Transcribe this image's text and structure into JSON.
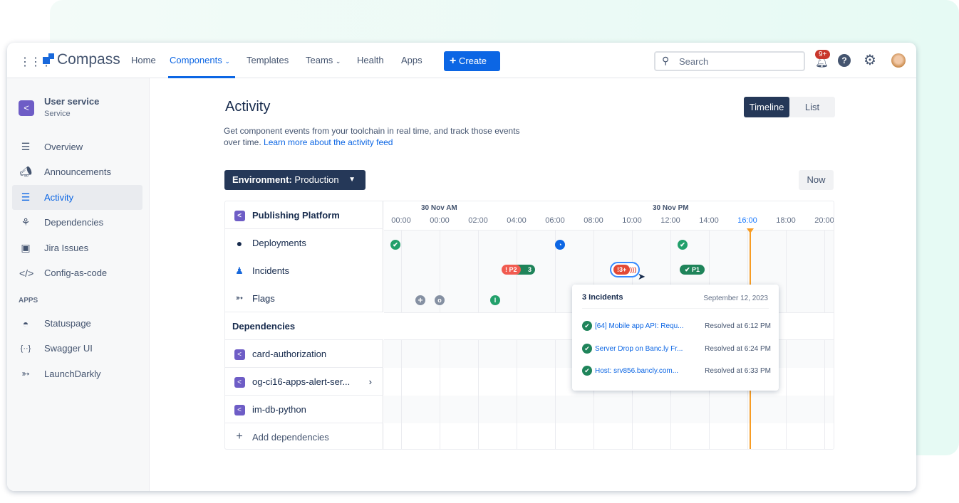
{
  "nav": {
    "brand": "Compass",
    "items": [
      {
        "label": "Home"
      },
      {
        "label": "Components",
        "active": true
      },
      {
        "label": "Templates"
      },
      {
        "label": "Teams"
      },
      {
        "label": "Health"
      },
      {
        "label": "Apps"
      }
    ],
    "create_label": "Create",
    "search_placeholder": "Search",
    "notification_badge": "9+"
  },
  "sidebar": {
    "component_name": "User service",
    "component_type": "Service",
    "items": [
      {
        "label": "Overview",
        "icon": "lines-icon"
      },
      {
        "label": "Announcements",
        "icon": "megaphone-icon"
      },
      {
        "label": "Activity",
        "icon": "activity-icon",
        "active": true
      },
      {
        "label": "Dependencies",
        "icon": "dependencies-icon"
      },
      {
        "label": "Jira Issues",
        "icon": "jira-icon"
      },
      {
        "label": "Config-as-code",
        "icon": "code-icon"
      }
    ],
    "apps_heading": "APPS",
    "apps": [
      {
        "label": "Statuspage"
      },
      {
        "label": "Swagger UI"
      },
      {
        "label": "LaunchDarkly"
      }
    ]
  },
  "main": {
    "title": "Activity",
    "description": "Get component events from your toolchain in real time, and track those events over time.",
    "learn_more": "Learn more about the activity feed",
    "view_toggle": [
      "Timeline",
      "List"
    ],
    "active_view": "Timeline",
    "environment_label": "Environment:",
    "environment_value": "Production",
    "now_label": "Now"
  },
  "timeline": {
    "component": "Publishing Platform",
    "rows": [
      "Deployments",
      "Incidents",
      "Flags"
    ],
    "dependencies_heading": "Dependencies",
    "dependencies": [
      "card-authorization",
      "og-ci16-apps-alert-ser...",
      "im-db-python"
    ],
    "add_dependencies": "Add dependencies",
    "date_am": "30 Nov AM",
    "date_pm": "30 Nov PM",
    "ticks": [
      "00:00",
      "00:00",
      "02:00",
      "04:00",
      "06:00",
      "08:00",
      "10:00",
      "12:00",
      "14:00",
      "16:00",
      "18:00",
      "20:00"
    ],
    "current_tick": "16:00",
    "events": {
      "incident_p2": "! P2",
      "incident_p2_count": "3",
      "incident_cluster": "!3+",
      "incident_p1": "✔ P1"
    }
  },
  "tooltip": {
    "title": "3 Incidents",
    "date": "September 12, 2023",
    "items": [
      {
        "name": "[64] Mobile app API: Requ...",
        "status": "Resolved at 6:12 PM"
      },
      {
        "name": "Server Drop on Banc.ly Fr...",
        "status": "Resolved at 6:24 PM"
      },
      {
        "name": "Host: srv856.bancly.com...",
        "status": "Resolved at 6:33 PM"
      }
    ]
  },
  "colors": {
    "accent": "#0c66e4",
    "success": "#22a06b",
    "danger": "#e34935",
    "now_line": "#f79c24",
    "component": "#6e5dc6"
  }
}
